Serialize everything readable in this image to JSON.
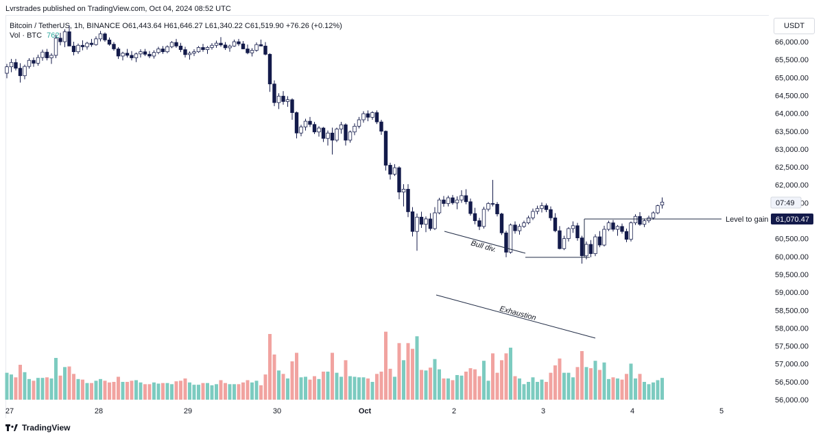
{
  "header": {
    "published": "Lvrstrades published on TradingView.com, Oct 04, 2024 08:52 UTC"
  },
  "legend": {
    "symbol": "Bitcoin / TetherUS, 1h, BINANCE",
    "open": "O61,443.64",
    "high": "H61,646.27",
    "low": "L61,340.22",
    "close": "C61,519.90",
    "change": "+76.26 (+0.12%)",
    "vol_label": "Vol · BTC",
    "vol_value": "762"
  },
  "currency": "USDT",
  "price_scale": {
    "ticks": [
      "66,000.00",
      "65,500.00",
      "65,000.00",
      "64,500.00",
      "64,000.00",
      "63,500.00",
      "63,000.00",
      "62,500.00",
      "62,000.00",
      "61,500.00",
      "61,000.00",
      "60,500.00",
      "60,000.00",
      "59,500.00",
      "59,000.00",
      "58,500.00",
      "58,000.00",
      "57,500.00",
      "57,000.00",
      "56,500.00",
      "56,000.00"
    ],
    "countdown": "07:49",
    "level_price": "61,070.47"
  },
  "time_axis": [
    "27",
    "28",
    "29",
    "30",
    "Oct",
    "2",
    "3",
    "4",
    "5"
  ],
  "annotations": {
    "bull_div": "Bull div.",
    "exhaustion": "Exhaustion",
    "level_to_gain": "Level to gain"
  },
  "footer": {
    "brand": "TradingView"
  },
  "colors": {
    "bull": "#ffffff",
    "bear": "#131a4a",
    "vol_up": "#7ccbc0",
    "vol_down": "#f1a3a0",
    "line": "#1f2a44"
  },
  "chart_data": {
    "type": "candlestick",
    "symbol": "BTC/USDT",
    "timeframe": "1h",
    "ylim": [
      55950,
      66300
    ],
    "x_labels": [
      "27",
      "28",
      "29",
      "30",
      "Oct",
      "2",
      "3",
      "4",
      "5"
    ],
    "candles_ohlc": [
      [
        65120,
        65380,
        64980,
        65300
      ],
      [
        65300,
        65520,
        65150,
        65420
      ],
      [
        65420,
        65520,
        65200,
        65260
      ],
      [
        65260,
        65400,
        64860,
        65050
      ],
      [
        65050,
        65360,
        64950,
        65310
      ],
      [
        65310,
        65540,
        65250,
        65480
      ],
      [
        65480,
        65560,
        65300,
        65400
      ],
      [
        65400,
        65640,
        65330,
        65560
      ],
      [
        65560,
        65780,
        65470,
        65710
      ],
      [
        65710,
        65800,
        65480,
        65550
      ],
      [
        65550,
        65680,
        65380,
        65620
      ],
      [
        65620,
        66200,
        65540,
        66100
      ],
      [
        66100,
        66250,
        65900,
        66000
      ],
      [
        66000,
        66350,
        65850,
        66280
      ],
      [
        66280,
        66460,
        65950,
        65880
      ],
      [
        65880,
        66000,
        65620,
        65720
      ],
      [
        65720,
        65950,
        65660,
        65900
      ],
      [
        65900,
        66040,
        65760,
        65860
      ],
      [
        65860,
        66000,
        65780,
        65960
      ],
      [
        65960,
        66080,
        65860,
        65920
      ],
      [
        65920,
        66150,
        65890,
        66080
      ],
      [
        66080,
        66300,
        66010,
        66220
      ],
      [
        66220,
        66260,
        66000,
        66050
      ],
      [
        66050,
        66120,
        65890,
        65930
      ],
      [
        65930,
        65990,
        65750,
        65800
      ],
      [
        65800,
        65850,
        65520,
        65600
      ],
      [
        65600,
        65720,
        65480,
        65680
      ],
      [
        65680,
        65800,
        65560,
        65620
      ],
      [
        65620,
        65740,
        65480,
        65550
      ],
      [
        65550,
        65700,
        65430,
        65660
      ],
      [
        65660,
        65790,
        65560,
        65720
      ],
      [
        65720,
        65800,
        65600,
        65650
      ],
      [
        65650,
        65740,
        65540,
        65600
      ],
      [
        65600,
        65760,
        65530,
        65700
      ],
      [
        65700,
        65860,
        65650,
        65800
      ],
      [
        65800,
        65880,
        65660,
        65720
      ],
      [
        65720,
        65900,
        65680,
        65860
      ],
      [
        65860,
        66020,
        65820,
        65980
      ],
      [
        65980,
        66080,
        65830,
        65880
      ],
      [
        65880,
        65970,
        65710,
        65780
      ],
      [
        65780,
        65860,
        65560,
        65640
      ],
      [
        65640,
        65730,
        65500,
        65680
      ],
      [
        65680,
        65790,
        65600,
        65720
      ],
      [
        65720,
        65880,
        65690,
        65840
      ],
      [
        65840,
        65940,
        65720,
        65780
      ],
      [
        65780,
        65880,
        65660,
        65840
      ],
      [
        65840,
        65960,
        65780,
        65900
      ],
      [
        65900,
        66030,
        65830,
        65960
      ],
      [
        65960,
        66130,
        65860,
        65910
      ],
      [
        65910,
        65990,
        65770,
        65830
      ],
      [
        65830,
        65920,
        65720,
        65880
      ],
      [
        65880,
        66060,
        65860,
        66000
      ],
      [
        66000,
        66080,
        65880,
        65940
      ],
      [
        65940,
        66020,
        65790,
        65800
      ],
      [
        65800,
        65920,
        65650,
        65690
      ],
      [
        65690,
        65820,
        65590,
        65760
      ],
      [
        65760,
        65980,
        65720,
        65920
      ],
      [
        65920,
        66060,
        65880,
        65880
      ],
      [
        65880,
        65990,
        65620,
        65650
      ],
      [
        65650,
        65680,
        64600,
        64820
      ],
      [
        64820,
        64920,
        64200,
        64300
      ],
      [
        64300,
        64560,
        64120,
        64480
      ],
      [
        64480,
        64620,
        64240,
        64330
      ],
      [
        64330,
        64480,
        64180,
        64380
      ],
      [
        64380,
        64420,
        63820,
        64020
      ],
      [
        64020,
        64050,
        63300,
        63450
      ],
      [
        63450,
        63680,
        63360,
        63620
      ],
      [
        63620,
        63850,
        63520,
        63780
      ],
      [
        63780,
        63900,
        63620,
        63690
      ],
      [
        63690,
        63760,
        63420,
        63480
      ],
      [
        63480,
        63640,
        63350,
        63590
      ],
      [
        63590,
        63620,
        63200,
        63300
      ],
      [
        63300,
        63520,
        63100,
        63450
      ],
      [
        63450,
        63600,
        62850,
        63250
      ],
      [
        63250,
        63600,
        63200,
        63560
      ],
      [
        63560,
        63760,
        63430,
        63680
      ],
      [
        63680,
        63720,
        63100,
        63250
      ],
      [
        63250,
        63520,
        63180,
        63480
      ],
      [
        63480,
        63720,
        63390,
        63640
      ],
      [
        63640,
        63900,
        63580,
        63820
      ],
      [
        63820,
        64060,
        63740,
        63990
      ],
      [
        63990,
        64080,
        63780,
        63890
      ],
      [
        63890,
        64060,
        63820,
        64020
      ],
      [
        64020,
        64080,
        63700,
        63760
      ],
      [
        63760,
        63820,
        63400,
        63500
      ],
      [
        63500,
        63520,
        62400,
        62550
      ],
      [
        62550,
        62620,
        62150,
        62300
      ],
      [
        62300,
        62580,
        62250,
        62480
      ],
      [
        62480,
        62520,
        61600,
        61800
      ],
      [
        61800,
        62020,
        61400,
        61880
      ],
      [
        61880,
        62020,
        61100,
        61250
      ],
      [
        61250,
        61380,
        60560,
        60700
      ],
      [
        60700,
        61200,
        60160,
        61100
      ],
      [
        61100,
        61250,
        60800,
        60900
      ],
      [
        60900,
        61120,
        60680,
        61050
      ],
      [
        61050,
        61210,
        60720,
        60780
      ],
      [
        60780,
        61380,
        60740,
        61220
      ],
      [
        61220,
        61640,
        61180,
        61580
      ],
      [
        61580,
        61690,
        61390,
        61480
      ],
      [
        61480,
        61700,
        61400,
        61640
      ],
      [
        61640,
        61720,
        61450,
        61500
      ],
      [
        61500,
        61680,
        61320,
        61580
      ],
      [
        61580,
        61850,
        61500,
        61700
      ],
      [
        61700,
        61880,
        61460,
        61530
      ],
      [
        61530,
        61620,
        61140,
        61200
      ],
      [
        61200,
        61360,
        60900,
        61000
      ],
      [
        61000,
        61080,
        60740,
        60840
      ],
      [
        60840,
        61390,
        60780,
        61320
      ],
      [
        61320,
        61520,
        61260,
        61480
      ],
      [
        61480,
        62140,
        61400,
        61460
      ],
      [
        61460,
        61520,
        61120,
        61190
      ],
      [
        61190,
        61220,
        60600,
        60660
      ],
      [
        60660,
        60720,
        59980,
        60120
      ],
      [
        60120,
        60920,
        60080,
        60880
      ],
      [
        60880,
        60980,
        60640,
        60720
      ],
      [
        60720,
        60910,
        60610,
        60840
      ],
      [
        60840,
        61000,
        60800,
        60940
      ],
      [
        60940,
        61140,
        60900,
        61080
      ],
      [
        61080,
        61340,
        61020,
        61260
      ],
      [
        61260,
        61420,
        61180,
        61340
      ],
      [
        61340,
        61510,
        61230,
        61420
      ],
      [
        61420,
        61480,
        61240,
        61310
      ],
      [
        61310,
        61400,
        61000,
        61080
      ],
      [
        61080,
        61210,
        60680,
        60720
      ],
      [
        60720,
        60850,
        60200,
        60220
      ],
      [
        60220,
        60580,
        60180,
        60500
      ],
      [
        60500,
        60820,
        60420,
        60780
      ],
      [
        60780,
        60980,
        60660,
        60860
      ],
      [
        60860,
        60940,
        60440,
        60520
      ],
      [
        60520,
        60580,
        59800,
        60020
      ],
      [
        60020,
        60420,
        59920,
        60340
      ],
      [
        60340,
        60460,
        59980,
        60080
      ],
      [
        60080,
        60620,
        60010,
        60550
      ],
      [
        60550,
        60710,
        60260,
        60320
      ],
      [
        60320,
        60860,
        60280,
        60760
      ],
      [
        60760,
        61000,
        60710,
        60940
      ],
      [
        60940,
        61020,
        60700,
        60760
      ],
      [
        60760,
        60880,
        60580,
        60840
      ],
      [
        60840,
        60920,
        60640,
        60700
      ],
      [
        60700,
        60780,
        60400,
        60480
      ],
      [
        60480,
        60980,
        60420,
        60940
      ],
      [
        60940,
        61180,
        60880,
        61120
      ],
      [
        61120,
        61240,
        60860,
        60900
      ],
      [
        60900,
        61060,
        60820,
        61000
      ],
      [
        61000,
        61140,
        60940,
        61080
      ],
      [
        61080,
        61260,
        61030,
        61220
      ],
      [
        61220,
        61450,
        61180,
        61420
      ],
      [
        61440,
        61650,
        61340,
        61520
      ]
    ],
    "volume_direction": "up candles green, down candles red"
  }
}
